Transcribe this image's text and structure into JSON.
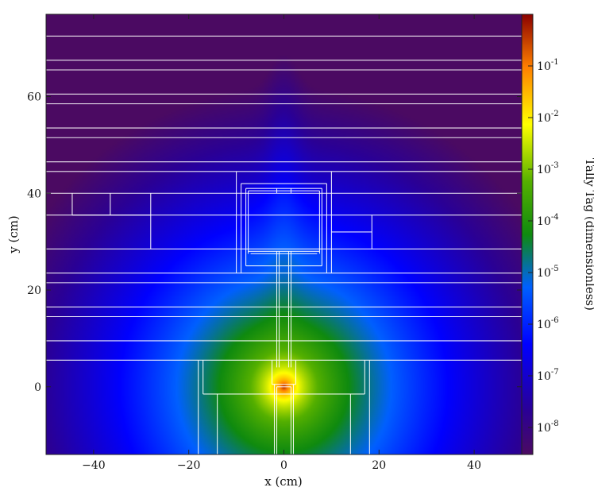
{
  "chart_data": {
    "type": "heatmap",
    "title": "",
    "xlabel": "x  (cm)",
    "ylabel": "y  (cm)",
    "xlim": [
      -50,
      50
    ],
    "ylim": [
      -14,
      77
    ],
    "x_ticks": [
      -40,
      -20,
      0,
      20,
      40
    ],
    "x_tick_labels": [
      "−40",
      "−20",
      "0",
      "20",
      "40"
    ],
    "y_ticks": [
      0,
      20,
      40,
      60
    ],
    "y_tick_labels": [
      "0",
      "20",
      "40",
      "60"
    ],
    "colorbar": {
      "label": "Tally Tag  (dimensionless)",
      "scale": "log",
      "range": [
        3e-09,
        1
      ],
      "ticks": [
        1e-08,
        1e-07,
        1e-06,
        1e-05,
        0.0001,
        0.001,
        0.01,
        0.1
      ],
      "tick_labels": [
        {
          "base": "10",
          "exp": "-8"
        },
        {
          "base": "10",
          "exp": "-7"
        },
        {
          "base": "10",
          "exp": "-6"
        },
        {
          "base": "10",
          "exp": "-5"
        },
        {
          "base": "10",
          "exp": "-4"
        },
        {
          "base": "10",
          "exp": "-3"
        },
        {
          "base": "10",
          "exp": "-2"
        },
        {
          "base": "10",
          "exp": "-1"
        }
      ],
      "colormap": "jet"
    },
    "field": {
      "source_point": [
        0,
        0
      ],
      "description": "log-scale tally peaks at source and decays with distance; highest near origin"
    },
    "geometry_overlay": {
      "color": "#ffffff",
      "horizontal_planes_y": [
        72.5,
        67.5,
        65.5,
        60.5,
        58.5,
        53.5,
        51.5,
        46.5,
        44.5,
        40,
        35.5,
        28.5,
        23.5,
        21.5,
        16.5,
        14.5,
        9.5,
        5.5
      ],
      "segments": [
        [
          -10,
          44.5,
          -10,
          23.5
        ],
        [
          10,
          44.5,
          10,
          23.5
        ],
        [
          -9,
          42,
          9,
          42
        ],
        [
          -9,
          42,
          -9,
          23.5
        ],
        [
          9,
          42,
          9,
          23.5
        ],
        [
          -8,
          41,
          8,
          41
        ],
        [
          -8,
          41,
          -8,
          25
        ],
        [
          8,
          41,
          8,
          25
        ],
        [
          -7.5,
          40.5,
          7.5,
          40.5
        ],
        [
          -7.5,
          40.5,
          -7.5,
          27.5
        ],
        [
          7.5,
          40.5,
          7.5,
          27.5
        ],
        [
          -7.5,
          28,
          7.5,
          28
        ],
        [
          -7,
          27.5,
          7,
          27.5
        ],
        [
          -8,
          25,
          8,
          25
        ],
        [
          -1.5,
          41,
          -1.5,
          40
        ],
        [
          1.5,
          41,
          1.5,
          40
        ],
        [
          -1.5,
          28,
          -1.5,
          4
        ],
        [
          1.5,
          28,
          1.5,
          4
        ],
        [
          -1,
          28,
          -1,
          4
        ],
        [
          1,
          28,
          1,
          4
        ],
        [
          -44.5,
          40,
          -44.5,
          35.5
        ],
        [
          -36.5,
          40,
          -36.5,
          35.5
        ],
        [
          -28,
          40,
          -28,
          28.5
        ],
        [
          -44.5,
          35.5,
          -28,
          35.5
        ],
        [
          10,
          32,
          18.5,
          32
        ],
        [
          18.5,
          35.5,
          18.5,
          28.5
        ],
        [
          -18,
          5.5,
          -18,
          -14
        ],
        [
          18,
          5.5,
          18,
          -14
        ],
        [
          -17,
          5.5,
          -17,
          -1.5
        ],
        [
          17,
          5.5,
          17,
          -1.5
        ],
        [
          -17,
          -1.5,
          17,
          -1.5
        ],
        [
          -14,
          -1.5,
          -14,
          -14
        ],
        [
          14,
          -1.5,
          14,
          -14
        ],
        [
          -2.5,
          5.5,
          -2.5,
          0.5
        ],
        [
          2.5,
          5.5,
          2.5,
          0.5
        ],
        [
          -2.5,
          0.5,
          2.5,
          0.5
        ],
        [
          -2,
          0.5,
          -2,
          -14
        ],
        [
          2,
          0.5,
          2,
          -14
        ],
        [
          -1.5,
          0,
          -1.5,
          -14
        ],
        [
          1.5,
          0,
          1.5,
          -14
        ],
        [
          -1.5,
          0,
          1.5,
          0
        ]
      ]
    }
  }
}
